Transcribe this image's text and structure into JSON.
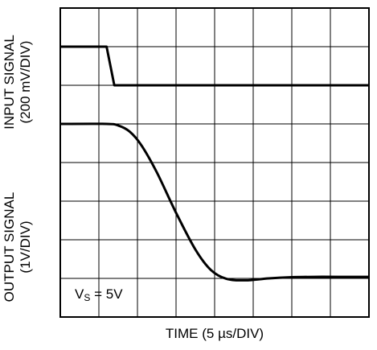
{
  "chart_data": {
    "type": "line",
    "x_axis_label": "TIME (5 µs/DIV)",
    "divisions": {
      "x": 8,
      "y": 8
    },
    "grid": true,
    "series": [
      {
        "name": "INPUT SIGNAL",
        "axis_label": [
          "INPUT SIGNAL",
          "(200 mV/DIV)"
        ],
        "unit": "200 mV/DIV",
        "x_div": [
          0.0,
          1.2,
          1.4,
          8.0
        ],
        "y_div": [
          7.0,
          7.0,
          6.0,
          6.0
        ]
      },
      {
        "name": "OUTPUT SIGNAL",
        "axis_label": [
          "OUTPUT SIGNAL",
          "(1V/DIV)"
        ],
        "unit": "1V/DIV",
        "x_div": [
          0.0,
          1.2,
          1.5,
          1.8,
          2.1,
          2.5,
          3.0,
          3.5,
          3.9,
          4.3,
          4.8,
          5.4,
          6.0,
          6.6,
          7.2,
          8.0
        ],
        "y_div": [
          5.0,
          5.0,
          4.96,
          4.8,
          4.45,
          3.75,
          2.7,
          1.75,
          1.22,
          0.99,
          0.95,
          1.0,
          1.03,
          1.04,
          1.04,
          1.04
        ]
      }
    ],
    "condition": {
      "main": "V",
      "sub": "S",
      "rest": " = 5V"
    }
  }
}
